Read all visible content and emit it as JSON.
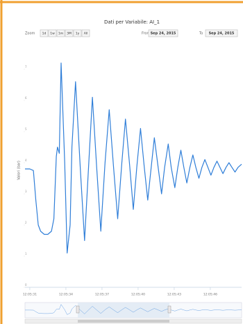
{
  "header": {
    "title": "Dati per Variabile: AI_1",
    "zoom_label": "Zoom",
    "zoom_buttons": [
      "1d",
      "1w",
      "1m",
      "3M",
      "1y",
      "All"
    ],
    "zoom_selected": 3,
    "from_label": "From",
    "from_date": "Sep 24, 2015",
    "to_label": "To",
    "to_date": "Sep 24, 2015"
  },
  "chart_data": {
    "type": "line",
    "y_label": "Valori (bar)",
    "color": "#2f7ed8",
    "xlim": [
      -0.4,
      17.6
    ],
    "xticks": [
      {
        "value": 0,
        "label": "12:05:31"
      },
      {
        "value": 3,
        "label": "12:05:34"
      },
      {
        "value": 6,
        "label": "12:05:37"
      },
      {
        "value": 9,
        "label": "12:05:40"
      },
      {
        "value": 12,
        "label": "12:05:43"
      },
      {
        "value": 15,
        "label": "12:05:46"
      }
    ],
    "ylim": [
      0,
      7.5
    ],
    "yticks": [
      0,
      1,
      2,
      3,
      4,
      5,
      6,
      7
    ],
    "series": [
      {
        "name": "AI_1",
        "color": "#2f7ed8",
        "x": [
          -0.4,
          0,
          0.3,
          0.5,
          0.7,
          0.9,
          1.2,
          1.5,
          1.8,
          2,
          2.2,
          2.3,
          2.45,
          2.6,
          2.9,
          3.1,
          3.35,
          3.5,
          3.8,
          4.2,
          4.55,
          4.9,
          5.2,
          5.55,
          5.9,
          6.25,
          6.6,
          6.95,
          7.3,
          7.65,
          7.95,
          8.3,
          8.6,
          8.9,
          9.2,
          9.5,
          9.8,
          10.1,
          10.35,
          10.65,
          10.95,
          11.2,
          11.5,
          11.75,
          12.05,
          12.3,
          12.55,
          12.8,
          13.05,
          13.3,
          13.55,
          13.8,
          14.05,
          14.3,
          14.55,
          14.8,
          15.05,
          15.3,
          15.55,
          15.8,
          16.05,
          16.3,
          16.55,
          16.8,
          17.05,
          17.3,
          17.6
        ],
        "values": [
          3.8,
          3.8,
          3.75,
          2.8,
          2.0,
          1.8,
          1.7,
          1.7,
          1.8,
          2.2,
          4.2,
          4.5,
          4.3,
          7.2,
          4.0,
          1.1,
          2.0,
          4.5,
          6.6,
          3.8,
          1.5,
          4.0,
          6.1,
          3.9,
          1.8,
          4.0,
          5.7,
          3.9,
          2.2,
          4.0,
          5.4,
          3.9,
          2.5,
          3.9,
          5.1,
          3.9,
          2.8,
          3.9,
          4.8,
          3.9,
          3.0,
          3.85,
          4.6,
          3.85,
          3.2,
          3.85,
          4.4,
          3.85,
          3.35,
          3.85,
          4.25,
          3.85,
          3.5,
          3.85,
          4.1,
          3.85,
          3.6,
          3.85,
          4.05,
          3.85,
          3.65,
          3.85,
          4.0,
          3.85,
          3.7,
          3.85,
          3.95
        ]
      }
    ]
  }
}
